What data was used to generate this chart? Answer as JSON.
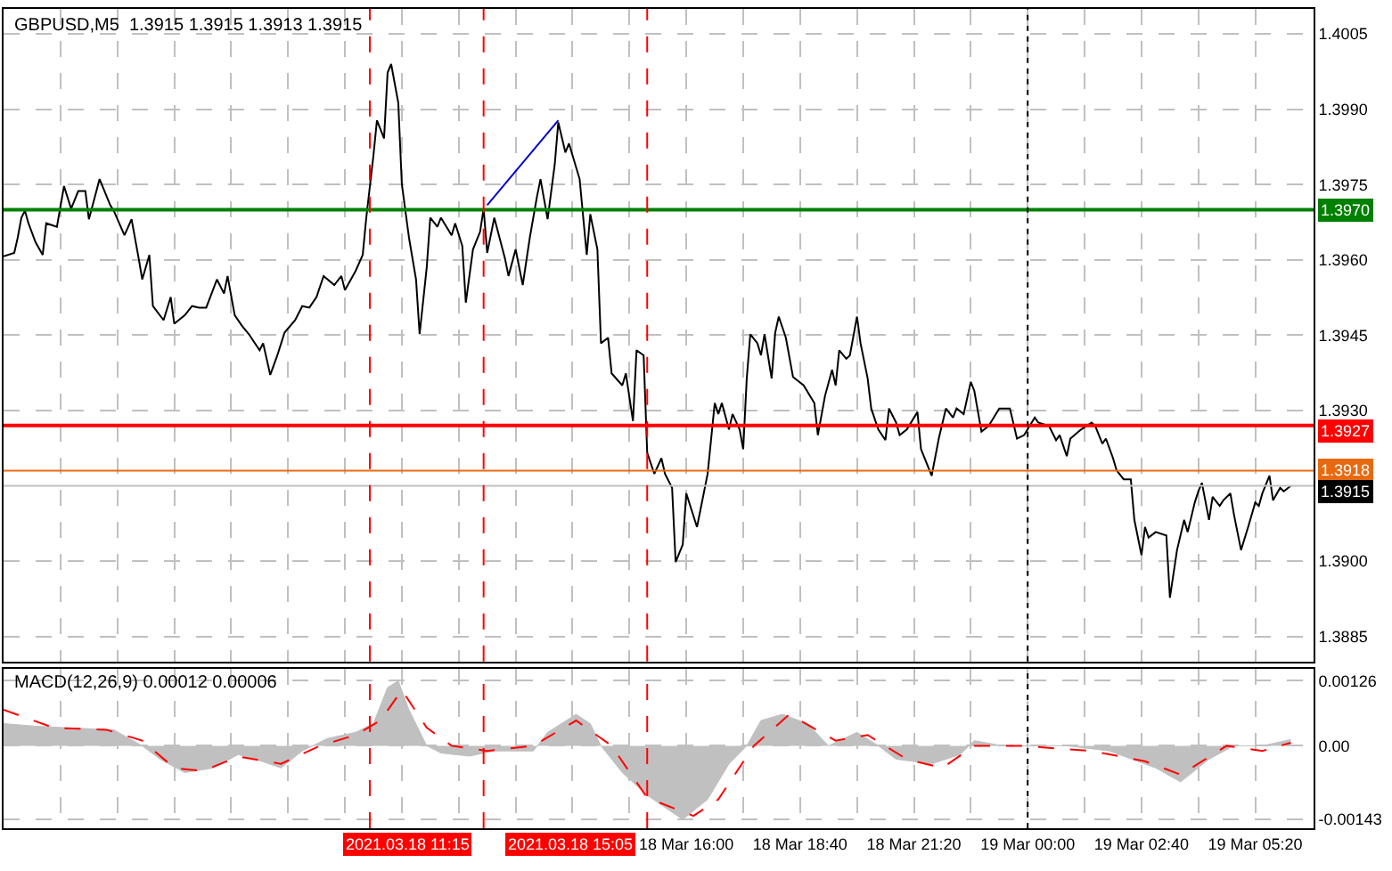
{
  "chart_data": [
    {
      "type": "line",
      "title": "GBPUSD,M5  1.3915 1.3915 1.3913 1.3915",
      "x": [
        "2021-03-18T00:00",
        "2021-03-18T00:15",
        "2021-03-18T00:20",
        "2021-03-18T00:25",
        "2021-03-18T00:30",
        "2021-03-18T00:35",
        "2021-03-18T00:45",
        "2021-03-18T00:55",
        "2021-03-18T01:00",
        "2021-03-18T01:15",
        "2021-03-18T01:25",
        "2021-03-18T01:35",
        "2021-03-18T01:45",
        "2021-03-18T01:55",
        "2021-03-18T02:00",
        "2021-03-18T02:15",
        "2021-03-18T02:30",
        "2021-03-18T02:35",
        "2021-03-18T02:50",
        "2021-03-18T03:00",
        "2021-03-18T03:10",
        "2021-03-18T03:15",
        "2021-03-18T03:25",
        "2021-03-18T03:30",
        "2021-03-18T03:45",
        "2021-03-18T03:55",
        "2021-03-18T04:00",
        "2021-03-18T04:15",
        "2021-03-18T04:25",
        "2021-03-18T04:35",
        "2021-03-18T04:45",
        "2021-03-18T05:00",
        "2021-03-18T05:10",
        "2021-03-18T05:15",
        "2021-03-18T05:25",
        "2021-03-18T05:35",
        "2021-03-18T05:45",
        "2021-03-18T06:00",
        "2021-03-18T06:05",
        "2021-03-18T06:15",
        "2021-03-18T06:25",
        "2021-03-18T06:35",
        "2021-03-18T06:50",
        "2021-03-18T07:00",
        "2021-03-18T07:10",
        "2021-03-18T07:20",
        "2021-03-18T07:30",
        "2021-03-18T07:45",
        "2021-03-18T07:55",
        "2021-03-18T08:00",
        "2021-03-18T08:15",
        "2021-03-18T08:25",
        "2021-03-18T08:30",
        "2021-03-18T08:40",
        "2021-03-18T08:45",
        "2021-03-18T08:55",
        "2021-03-18T09:00",
        "2021-03-18T09:05",
        "2021-03-18T09:15",
        "2021-03-18T09:20",
        "2021-03-18T09:30",
        "2021-03-18T09:40",
        "2021-03-18T09:45",
        "2021-03-18T09:55",
        "2021-03-18T10:00",
        "2021-03-18T10:10",
        "2021-03-18T10:15",
        "2021-03-18T10:30",
        "2021-03-18T10:35",
        "2021-03-18T10:45",
        "2021-03-18T10:50",
        "2021-03-18T11:00",
        "2021-03-18T11:10",
        "2021-03-18T11:15",
        "2021-03-18T11:20",
        "2021-03-18T11:30",
        "2021-03-18T11:45",
        "2021-03-18T11:50",
        "2021-03-18T12:00",
        "2021-03-18T12:10",
        "2021-03-18T12:20",
        "2021-03-18T12:30",
        "2021-03-18T12:35",
        "2021-03-18T12:45",
        "2021-03-18T12:55",
        "2021-03-18T13:00",
        "2021-03-18T13:10",
        "2021-03-18T13:15",
        "2021-03-18T13:30",
        "2021-03-18T13:40",
        "2021-03-18T13:45",
        "2021-03-18T13:55",
        "2021-03-18T14:00",
        "2021-03-18T14:10",
        "2021-03-18T14:15",
        "2021-03-18T14:30",
        "2021-03-18T14:35",
        "2021-03-18T14:45",
        "2021-03-18T14:50",
        "2021-03-18T15:00",
        "2021-03-18T15:05",
        "2021-03-18T15:15",
        "2021-03-18T15:25",
        "2021-03-18T15:30",
        "2021-03-18T15:40",
        "2021-03-18T15:45",
        "2021-03-18T15:55",
        "2021-03-18T16:00",
        "2021-03-18T16:15",
        "2021-03-18T16:20",
        "2021-03-18T16:30",
        "2021-03-18T16:40",
        "2021-03-18T16:45",
        "2021-03-18T16:50",
        "2021-03-18T17:00",
        "2021-03-18T17:05",
        "2021-03-18T17:15",
        "2021-03-18T17:20",
        "2021-03-18T17:25",
        "2021-03-18T17:30",
        "2021-03-18T17:40",
        "2021-03-18T17:45",
        "2021-03-18T17:50",
        "2021-03-18T18:00",
        "2021-03-18T18:05",
        "2021-03-18T18:10",
        "2021-03-18T18:20",
        "2021-03-18T18:30",
        "2021-03-18T18:45",
        "2021-03-18T19:00",
        "2021-03-18T19:05",
        "2021-03-18T19:15",
        "2021-03-18T19:25",
        "2021-03-18T19:30",
        "2021-03-18T19:35",
        "2021-03-18T19:45",
        "2021-03-18T19:50",
        "2021-03-18T20:00",
        "2021-03-18T20:05",
        "2021-03-18T20:15",
        "2021-03-18T20:20",
        "2021-03-18T20:30",
        "2021-03-18T20:40",
        "2021-03-18T20:45",
        "2021-03-18T20:55",
        "2021-03-18T21:00",
        "2021-03-18T21:10",
        "2021-03-18T21:25",
        "2021-03-18T21:30",
        "2021-03-18T21:45",
        "2021-03-18T21:55",
        "2021-03-18T22:05",
        "2021-03-18T22:15",
        "2021-03-18T22:20",
        "2021-03-18T22:30",
        "2021-03-18T22:40",
        "2021-03-18T22:45",
        "2021-03-18T22:55",
        "2021-03-18T23:05",
        "2021-03-18T23:20",
        "2021-03-18T23:35",
        "2021-03-18T23:45",
        "2021-03-18T23:55",
        "2021-03-19T00:10",
        "2021-03-19T00:15",
        "2021-03-19T00:30",
        "2021-03-19T00:40",
        "2021-03-19T00:45",
        "2021-03-19T00:55",
        "2021-03-19T01:00",
        "2021-03-19T01:15",
        "2021-03-19T01:30",
        "2021-03-19T01:35",
        "2021-03-19T01:45",
        "2021-03-19T01:50",
        "2021-03-19T02:00",
        "2021-03-19T02:05",
        "2021-03-19T02:15",
        "2021-03-19T02:25",
        "2021-03-19T02:30",
        "2021-03-19T02:40",
        "2021-03-19T02:45",
        "2021-03-19T02:50",
        "2021-03-19T03:00",
        "2021-03-19T03:15",
        "2021-03-19T03:20",
        "2021-03-19T03:30",
        "2021-03-19T03:40",
        "2021-03-19T03:45",
        "2021-03-19T03:55",
        "2021-03-19T04:00",
        "2021-03-19T04:05",
        "2021-03-19T04:15",
        "2021-03-19T04:20",
        "2021-03-19T04:30",
        "2021-03-19T04:35",
        "2021-03-19T04:45",
        "2021-03-19T04:50",
        "2021-03-19T05:00",
        "2021-03-19T05:10",
        "2021-03-19T05:20",
        "2021-03-19T05:25",
        "2021-03-19T05:30",
        "2021-03-19T05:40",
        "2021-03-19T05:45",
        "2021-03-19T05:55",
        "2021-03-19T06:00",
        "2021-03-19T06:10"
      ],
      "series": [
        {
          "color": "#000000",
          "values": [
            1.39607,
            1.39614,
            1.39645,
            1.39684,
            1.39698,
            1.39673,
            1.39635,
            1.3961,
            1.39673,
            1.39666,
            1.39747,
            1.39702,
            1.39737,
            1.39737,
            1.39681,
            1.39761,
            1.39709,
            1.39698,
            1.39649,
            1.39681,
            1.39603,
            1.39561,
            1.3961,
            1.39508,
            1.3948,
            1.39526,
            1.39473,
            1.3949,
            1.39508,
            1.39505,
            1.39505,
            1.39561,
            1.39533,
            1.39568,
            1.3949,
            1.39469,
            1.39452,
            1.3942,
            1.39434,
            1.39371,
            1.3941,
            1.39455,
            1.3948,
            1.39508,
            1.39505,
            1.39526,
            1.39568,
            1.3955,
            1.39568,
            1.3954,
            1.39578,
            1.3961,
            1.39684,
            1.39807,
            1.39878,
            1.39842,
            1.39973,
            1.3999,
            1.39913,
            1.39751,
            1.39645,
            1.39561,
            1.39452,
            1.39585,
            1.39684,
            1.39666,
            1.39684,
            1.39649,
            1.39673,
            1.39628,
            1.39515,
            1.39621,
            1.39656,
            1.39702,
            1.39614,
            1.39684,
            1.39603,
            1.39568,
            1.39621,
            1.3955,
            1.39645,
            1.39726,
            1.39761,
            1.39681,
            1.3979,
            1.39874,
            1.39814,
            1.39832,
            1.39761,
            1.3961,
            1.39691,
            1.39621,
            1.39434,
            1.39445,
            1.39374,
            1.3935,
            1.39374,
            1.39279,
            1.3942,
            1.3941,
            1.39216,
            1.39174,
            1.39205,
            1.39174,
            1.39146,
            1.38998,
            1.39033,
            1.39135,
            1.39068,
            1.39103,
            1.39174,
            1.39315,
            1.39293,
            1.39315,
            1.39262,
            1.39293,
            1.39262,
            1.39223,
            1.39364,
            1.39452,
            1.39434,
            1.3941,
            1.39452,
            1.39364,
            1.39455,
            1.39487,
            1.39445,
            1.39367,
            1.3935,
            1.39315,
            1.39251,
            1.39329,
            1.39381,
            1.3935,
            1.3942,
            1.39403,
            1.3941,
            1.39487,
            1.39434,
            1.39364,
            1.39304,
            1.39262,
            1.39241,
            1.39304,
            1.39276,
            1.39251,
            1.39262,
            1.39297,
            1.39223,
            1.3917,
            1.39244,
            1.39304,
            1.39286,
            1.39304,
            1.39293,
            1.39357,
            1.39339,
            1.39258,
            1.39269,
            1.39304,
            1.39304,
            1.39244,
            1.39251,
            1.39286,
            1.39276,
            1.39269,
            1.39241,
            1.39251,
            1.39209,
            1.39244,
            1.39262,
            1.39276,
            1.39269,
            1.39234,
            1.39244,
            1.39205,
            1.39181,
            1.39163,
            1.39163,
            1.39082,
            1.39012,
            1.39068,
            1.39047,
            1.39058,
            1.39051,
            1.38927,
            1.39022,
            1.39082,
            1.39058,
            1.39117,
            1.39139,
            1.39156,
            1.39082,
            1.39128,
            1.3911,
            1.39121,
            1.39135,
            1.39093,
            1.39022,
            1.39068,
            1.39117,
            1.3911,
            1.39135,
            1.3917,
            1.39121,
            1.39146,
            1.39139,
            1.3915
          ]
        },
        {
          "type": "line",
          "color": "#0000cc",
          "x": [
            "2021-03-18T11:20",
            "2021-03-18T13:00"
          ],
          "values": [
            1.39709,
            1.39878
          ]
        }
      ],
      "xlim": [
        "2021-03-18T00:00",
        "2021-03-19T06:42"
      ],
      "ylim": [
        1.388,
        1.401
      ],
      "xticks": [
        {
          "value": "2021-03-18T01:20",
          "label": null
        },
        {
          "value": "2021-03-18T02:40",
          "label": null
        },
        {
          "value": "2021-03-18T04:00",
          "label": null
        },
        {
          "value": "2021-03-18T05:20",
          "label": null
        },
        {
          "value": "2021-03-18T06:40",
          "label": null
        },
        {
          "value": "2021-03-18T08:00",
          "label": null
        },
        {
          "value": "2021-03-18T09:20",
          "label": null
        },
        {
          "value": "2021-03-18T10:40",
          "label": null
        },
        {
          "value": "2021-03-18T12:00",
          "label": null
        },
        {
          "value": "2021-03-18T13:20",
          "label": null
        },
        {
          "value": "2021-03-18T14:40",
          "label": null
        },
        {
          "value": "2021-03-18T16:00",
          "label": null
        },
        {
          "value": "2021-03-18T17:20",
          "label": null
        },
        {
          "value": "2021-03-18T18:40",
          "label": null
        },
        {
          "value": "2021-03-18T20:00",
          "label": null
        },
        {
          "value": "2021-03-18T21:20",
          "label": null
        },
        {
          "value": "2021-03-18T22:40",
          "label": null
        },
        {
          "value": "2021-03-19T00:00",
          "label": null
        },
        {
          "value": "2021-03-19T01:20",
          "label": null
        },
        {
          "value": "2021-03-19T02:40",
          "label": null
        },
        {
          "value": "2021-03-19T04:00",
          "label": null
        },
        {
          "value": "2021-03-19T05:20",
          "label": null
        }
      ],
      "yticks": [
        1.4005,
        {
          "value": 1.399,
          "label": "1.3990"
        },
        1.3975,
        {
          "value": 1.396,
          "label": "1.3960"
        },
        1.3945,
        {
          "value": 1.393,
          "label": "1.3930"
        },
        {
          "value": 1.39,
          "label": "1.3900"
        },
        1.3885
      ],
      "ref_lines": [
        {
          "axis": "y",
          "value": 1.397,
          "label": "1.3970",
          "color": "#008000"
        },
        {
          "axis": "y",
          "value": 1.3927,
          "label": "1.3927",
          "color": "#ff0000"
        },
        {
          "axis": "y",
          "value": 1.3918,
          "label": "1.3918",
          "color": "#e86a10"
        },
        {
          "axis": "y",
          "value": 1.3915,
          "label": "1.3915",
          "color": "#c0c0c0"
        },
        {
          "axis": "x",
          "value": "2021-03-18T08:35",
          "color": "#ff0000",
          "line_style": "dashed"
        },
        {
          "axis": "x",
          "value": "2021-03-18T11:15",
          "color": "#ff0000",
          "line_style": "dashed"
        },
        {
          "axis": "x",
          "value": "2021-03-18T15:05",
          "color": "#ff0000",
          "line_style": "dashed"
        },
        {
          "axis": "x",
          "value": "2021-03-19T00:00",
          "color": "#000000",
          "line_style": "dotted"
        }
      ],
      "grid": true,
      "tick_labels": "y"
    },
    {
      "type": "area",
      "title": "MACD(12,26,9) 0.00012 0.00006",
      "series": [
        {
          "type": "area",
          "color": "#c0c0c0",
          "x": [
            "2021-03-18T00:00",
            "2021-03-18T00:45",
            "2021-03-18T01:30",
            "2021-03-18T02:35",
            "2021-03-18T03:15",
            "2021-03-18T03:40",
            "2021-03-18T04:15",
            "2021-03-18T04:55",
            "2021-03-18T05:30",
            "2021-03-18T06:05",
            "2021-03-18T06:30",
            "2021-03-18T07:00",
            "2021-03-18T07:35",
            "2021-03-18T08:15",
            "2021-03-18T08:40",
            "2021-03-18T09:00",
            "2021-03-18T09:15",
            "2021-03-18T09:30",
            "2021-03-18T09:55",
            "2021-03-18T10:15",
            "2021-03-18T10:55",
            "2021-03-18T11:30",
            "2021-03-18T12:25",
            "2021-03-18T12:45",
            "2021-03-18T13:25",
            "2021-03-18T13:45",
            "2021-03-18T14:00",
            "2021-03-18T14:30",
            "2021-03-18T15:05",
            "2021-03-18T15:55",
            "2021-03-18T16:30",
            "2021-03-18T17:00",
            "2021-03-18T17:25",
            "2021-03-18T17:45",
            "2021-03-18T18:15",
            "2021-03-18T18:50",
            "2021-03-18T19:20",
            "2021-03-18T20:00",
            "2021-03-18T20:30",
            "2021-03-18T20:55",
            "2021-03-18T21:45",
            "2021-03-18T22:25",
            "2021-03-18T22:45",
            "2021-03-18T23:25",
            "2021-03-19T00:55",
            "2021-03-19T01:55",
            "2021-03-19T03:00",
            "2021-03-19T03:35",
            "2021-03-19T04:15",
            "2021-03-19T04:50",
            "2021-03-19T05:30",
            "2021-03-19T06:10"
          ],
          "values": [
            0.00043,
            0.00038,
            0.00035,
            0.00031,
            0.0,
            -0.00026,
            -0.00052,
            -0.00043,
            -0.00017,
            -0.00031,
            -0.00043,
            -0.0001,
            0.00014,
            0.00026,
            0.00043,
            0.00113,
            0.00126,
            0.0007,
            0.0,
            -0.00014,
            -0.0002,
            -0.0001,
            -0.0001,
            0.00026,
            0.00061,
            0.00043,
            0.0,
            -0.00052,
            -0.00096,
            -0.00143,
            -0.00104,
            -0.00035,
            0.0,
            0.00049,
            0.00061,
            0.00043,
            0.0,
            0.00026,
            0.0,
            -0.00026,
            -0.00035,
            -0.00017,
            0.0001,
            0.0,
            0.0,
            -0.0001,
            -0.00043,
            -0.0007,
            -0.00026,
            0.0,
            0.0,
            0.00012
          ]
        },
        {
          "type": "line",
          "color": "#ff0000",
          "line_style": "dashed",
          "x": [
            "2021-03-18T00:00",
            "2021-03-18T01:10",
            "2021-03-18T02:25",
            "2021-03-18T03:15",
            "2021-03-18T04:00",
            "2021-03-18T04:40",
            "2021-03-18T05:30",
            "2021-03-18T06:30",
            "2021-03-18T07:25",
            "2021-03-18T08:15",
            "2021-03-18T08:50",
            "2021-03-18T09:20",
            "2021-03-18T09:55",
            "2021-03-18T10:30",
            "2021-03-18T11:20",
            "2021-03-18T12:25",
            "2021-03-18T13:25",
            "2021-03-18T14:15",
            "2021-03-18T15:05",
            "2021-03-18T16:10",
            "2021-03-18T16:45",
            "2021-03-18T17:35",
            "2021-03-18T18:25",
            "2021-03-18T19:30",
            "2021-03-18T20:15",
            "2021-03-18T21:10",
            "2021-03-18T22:00",
            "2021-03-18T22:45",
            "2021-03-18T23:50",
            "2021-03-19T01:30",
            "2021-03-19T02:45",
            "2021-03-19T03:35",
            "2021-03-19T04:40",
            "2021-03-19T05:30",
            "2021-03-19T06:10"
          ],
          "values": [
            0.0007,
            0.00035,
            0.00031,
            0.0001,
            -0.00043,
            -0.00049,
            -0.00021,
            -0.00035,
            0.0,
            0.00021,
            0.00049,
            0.00108,
            0.00035,
            0.0,
            -0.0001,
            0.0,
            0.00049,
            0.0,
            -0.00101,
            -0.00136,
            -0.00104,
            0.0,
            0.00061,
            0.0001,
            0.00021,
            -0.00026,
            -0.00043,
            0.0,
            0.0,
            -0.0001,
            -0.0003,
            -0.00056,
            0.0,
            -0.0001,
            6e-05
          ]
        }
      ],
      "xlim": [
        "2021-03-18T00:00",
        "2021-03-19T06:42"
      ],
      "ylim": [
        -0.0016,
        0.0015
      ],
      "xticks": [
        {
          "value": "2021-03-18T01:20",
          "label": null
        },
        {
          "value": "2021-03-18T02:40",
          "label": null
        },
        {
          "value": "2021-03-18T04:00",
          "label": null
        },
        {
          "value": "2021-03-18T05:20",
          "label": null
        },
        {
          "value": "2021-03-18T06:40",
          "label": null
        },
        {
          "value": "2021-03-18T08:00",
          "label": null
        },
        {
          "value": "2021-03-18T09:20",
          "label": null
        },
        {
          "value": "2021-03-18T10:40",
          "label": null
        },
        {
          "value": "2021-03-18T12:00",
          "label": null
        },
        {
          "value": "2021-03-18T13:20",
          "label": null
        },
        {
          "value": "2021-03-18T14:40",
          "label": null
        },
        {
          "value": "2021-03-18T16:00",
          "label": "18 Mar 16:00"
        },
        {
          "value": "2021-03-18T17:20",
          "label": null
        },
        {
          "value": "2021-03-18T18:40",
          "label": "18 Mar 18:40"
        },
        {
          "value": "2021-03-18T20:00",
          "label": null
        },
        {
          "value": "2021-03-18T21:20",
          "label": "18 Mar 21:20"
        },
        {
          "value": "2021-03-18T22:40",
          "label": null
        },
        {
          "value": "2021-03-19T00:00",
          "label": "19 Mar 00:00"
        },
        {
          "value": "2021-03-19T01:20",
          "label": null
        },
        {
          "value": "2021-03-19T02:40",
          "label": "19 Mar 02:40"
        },
        {
          "value": "2021-03-19T04:00",
          "label": null
        },
        {
          "value": "2021-03-19T05:20",
          "label": "19 Mar 05:20"
        }
      ],
      "yticks": [
        0.00126,
        {
          "value": 0,
          "label": "0.00"
        },
        -0.00143
      ],
      "ref_lines": [
        {
          "axis": "x",
          "value": "2021-03-18T08:35",
          "color": "#ff0000",
          "line_style": "dashed"
        },
        {
          "axis": "x",
          "value": "2021-03-18T11:15",
          "label": "2021.03.18 11:15",
          "color": "#ff0000",
          "line_style": "dashed"
        },
        {
          "axis": "x",
          "value": "2021-03-18T15:05",
          "label": "2021.03.18 15:05",
          "color": "#ff0000",
          "line_style": "dashed"
        },
        {
          "axis": "x",
          "value": "2021-03-19T00:00",
          "color": "#000000",
          "line_style": "dotted"
        }
      ],
      "grid": true
    }
  ]
}
